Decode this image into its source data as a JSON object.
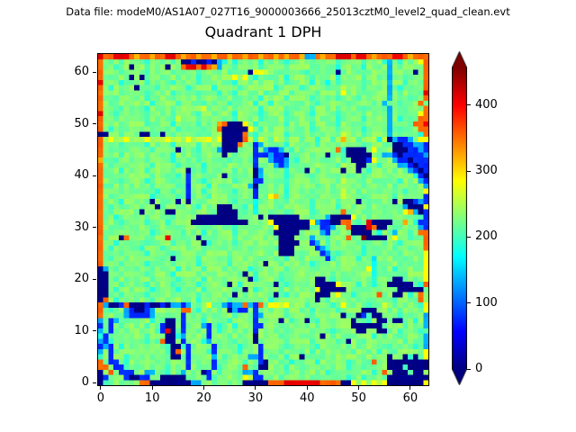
{
  "header": {
    "data_file_label": "Data file: modeM0/AS1A07_027T16_9000003666_25013cztM0_level2_quad_clean.evt"
  },
  "chart_data": {
    "type": "heatmap",
    "title": "Quadrant 1 DPH",
    "xlabel": "",
    "ylabel": "",
    "grid_size": 64,
    "xlim": [
      -0.5,
      63.5
    ],
    "ylim": [
      -0.5,
      63.5
    ],
    "x_ticks": [
      0,
      10,
      20,
      30,
      40,
      50,
      60
    ],
    "y_ticks": [
      0,
      10,
      20,
      30,
      40,
      50,
      60
    ],
    "colormap": "jet",
    "vmin": 0,
    "vmax": 457,
    "colorbar_ticks": [
      0,
      100,
      200,
      300,
      400
    ],
    "colorbar_extend": "both",
    "legend": "none",
    "grid_lines": false,
    "palette": {
      "B": 2,
      "b": 75,
      "c": 135,
      "C": 175,
      ",": 200,
      ".": 228,
      "g": 250,
      "y": 285,
      "Y": 320,
      "o": 355,
      "r": 410,
      "R": 455
    },
    "noise_amplitude": 16,
    "rows_top_to_bottom": [
      "roorrroYooYoorroYooYooYooYooYooYooYoYooYccoYoorrrorroYooorroYooo",
      "o...,....,....,.BBbBBbBcC.,....,....,....,....,....,...,c.,...yo",
      "o..,..B..,...B..orroroYc..,....,....,....,....,....,....c.,....o",
      "o...,....,....,....,.....,...Byyg..,....,.....B...,.....c....B.o",
      "o.,...B.B...,......,......ygy.,.....,....,....,....,....c..,...o",
      "r...,....,....,....,......,....,....,....,..C.,....,....c..,...o",
      "o.,....B...,.....,....,....,......,....,....,..g...,....c.,....o",
      "o...,....,....,....,...,..,.....,....,....,....y...,....c.,....r",
      "o..,.....,....,....,......,....,....,....,....,...,.....c...,..o",
      "o.,.......,....,....,....,....,..,........,.....,....,.c..,...o",
      "o...,....,....,.....g.....,....,....,....,....,....,....c.,....o",
      "r..,.....,....,....,......,....,....,....,....,....,....c.....yo",
      "o..,.....,....,g...,......,....,....,....,....,....,....c.,...oo",
      "o...,....,....,....,...YoBBBy.,.....,....,....,....,....c....oor",
      "o.,.......,....,....,..oBBBBBy.,....,....,....,....,....c.,...oo",
      "BB..,...BB..B.,....,...gBBBBo.,.....,....,.....g...,....c.,...,o",
      "ogyggygggygggygggygggygyBBBBog,gg,gg,gg,gg,gg,gYgg,ggg,gBcbbc.yy",
      "o...,....,....,....,....BBBo..bc....,.....,....g...,.....BBbbccb",
      "o.,.......,....B...,...cBBB...b.cbbc.,........o,BBBB.y...BBBbbcb",
      "o...,....,....,....,....B.,...bbbcbbB.,.....B..,BBBBB..ccbBbbbbc",
      "Y..,.....,....,....,.....,....b..cbbc.,........,.BBBby...cbbBbbb",
      "o.,.......,....,....,.........b...cbc.,.......,g..BB..,...ccbBbb",
      "o...,....,....,..B..,.....,...Bc....,...B.,....B..B.,......,cbBb",
      "o.,.......,....,.b...,..B.,...Bc....,....,.....g...,.........,bB",
      "o...,....,....,..b..,.....,...bb....,....,.....g...,......,...cb",
      "o.,.......,....,.b...,.......cB.....,.....,....g...,.....,.....c",
      "o...,......,..,..b..,.....,...b.....,....,.....g..,........,...y",
      "o.,.......,....,.b...,....,...b..yY.,.....,....g...,.....,.....b",
      "o...,....,B....B.B..,.....,...C.....,....,....,...B.,....B.BBbcb",
      "o.,........B,......,...BBB..,.C....,.....,....,.....,......cBBByb",
      "o.,.....B....BB...,....BBBB.,.C.....,....,.....o...,.......yYcBb",
      "o..,.....,....,....BBBBBBBB....B.BBBBBB.....cBBBBy..,.........,bb",
      "o...,....,...,....BBBBBBBBBBB....yBBBBBBBycbbBBoo.,.rBBBB..Y.,bb",
      "o...,.....,....,....,.....,.......yBBBBBB..bbc..oBBBroBB.,....cb",
      "o.,.......,.....,...,.....,.......BBBBB....cb.,..BBBB.C..c..,.oo",
      "o...Bo....,..r.....B.,....,........BBB...c..,...o..RBBBB.y..,..o",
      "o..,.....,....,.....B,....,........BBBB..bc.,......,......,....o",
      "o.,.....,...,.......,.....,........BBB....bc,......,.....,.....o",
      "o...,....,....,....,.....,.........BBB.....bc.,....,......,....y",
      "o.,.........,.B....,.....,..........,.......b,....,..C.....,...y",
      "o...,....,....,....,.....,......B..,.....,....,......C....,....y",
      "Bc.,......,....,....,...,....,......,.....,.........yC...,.....y",
      "BB..,....,....,....,........B.,....,.........,.......C....,....y",
      "BB.,......,....,....,........B,....,......BB.,.......C...BB..,.y",
      "BB..,....,....,....,.....B.,......B.,.....BBBBy...,..C..BBBBB.,o",
      "BB.,......,....,....,.......B.,....,......yBBBBB...,......BBBBB.o",
      "BB..,....,....,....,......B.,.....B.,.....BBB.y..,....o..BB.,.o",
      "Bo.,......,....g...,.....,.......,........B.,.....,......,....o",
      "ocBBboBBBbBBbBccbc.,.y.,cbccocbo.yygy.g.,..g.,.y.,..,..g.,..g.,y",
      "o.,..cbBBbc.....oo.,.....Bcbb.b.....,....,....,....BBB....,....y",
      "o....cbbbbc.....b...,.....,...bc....,....,.....B..Bb,BB...,....c",
      "c.bc.,....,..BB.b...,....,....b....B.,..B.,......B..,.BB.BB..,.c",
      "b.b.,....,..bBB.b...cb.,..,...bb...,......,......BBBBBB....,...c",
      "c,b..,.....,brB.b....b.,..,...b.....,........,....BB..BB..,...,.c",
      ",b,......,...BB,c....b...,....B....,.......B.,.......,....,....c",
      "cb,......,.,oBB.b...,c....,...B.....,....,....,.B..,.......,...c",
      "bcb.,........,BB,b....b,...,...b....,.....,.......,....,,....,.c",
      "c.b,.........,Bo.b...,b....,...b...,.....,.......,....,..,.....y",
      ",.b..,.......,BB.b....c.,....ccb....,..B...,.......,....B..B,B.y",
      "o.bb.,.......,...b....b,....,..bB....,....,.....,...,o..BBBBBBBBy",
      "oo.bb,.......,...b....b,....o.,BB...,........,..,..,....BBB,BBBBy",
      "B.o.bbb..cc..,..c...Bb.,....ccb.....,..,....,........,.o.BBB,BB.y",
      "Bb...bBBbb..BBBBB....b,.....ygbb...,............,..,....BBBBBBBBy",
      "B,......ooBBBBBBBBcc..,.....BBBBBooorrrrrrrooooBBygygygyBBBBBBBy"
    ]
  },
  "axis": {
    "x_tick_labels": [
      "0",
      "10",
      "20",
      "30",
      "40",
      "50",
      "60"
    ],
    "y_tick_labels": [
      "0",
      "10",
      "20",
      "30",
      "40",
      "50",
      "60"
    ],
    "colorbar_tick_labels": [
      "0",
      "100",
      "200",
      "300",
      "400"
    ]
  }
}
